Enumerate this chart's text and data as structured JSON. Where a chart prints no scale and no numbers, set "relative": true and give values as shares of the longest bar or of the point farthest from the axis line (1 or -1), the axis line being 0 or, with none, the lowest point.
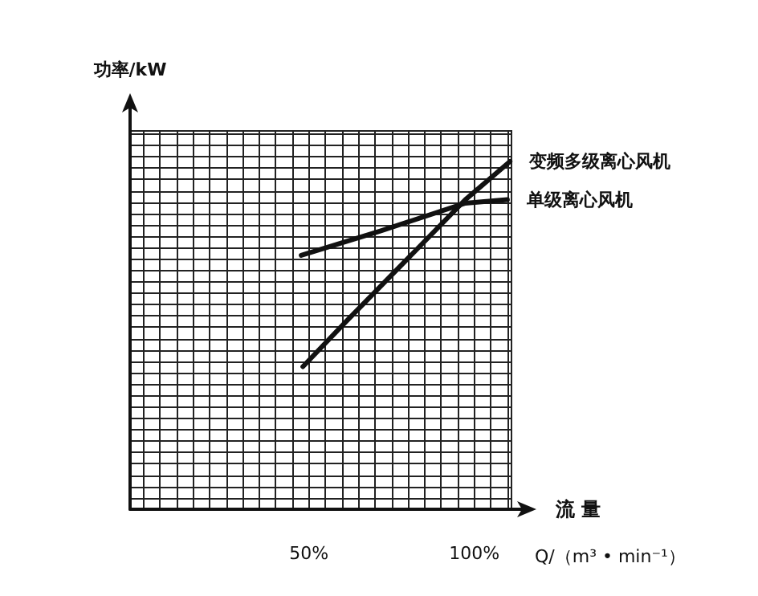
{
  "chart_data": {
    "type": "line",
    "relative": true,
    "ylabel": "功率/kW",
    "xlabel": "流 量",
    "annotations": [
      "Q/（m³ • min⁻¹）"
    ],
    "xlim": [
      -4,
      111
    ],
    "xticks": [
      {
        "value": 50,
        "label": "50%"
      },
      {
        "value": 100,
        "label": "100%"
      }
    ],
    "grid": true,
    "legend": false,
    "marker": "none",
    "line_style": "solid",
    "series": [
      {
        "name": "变频多级离心风机",
        "color": "#111111",
        "x": [
          48.2,
          61.3,
          97.3,
          110.8
        ],
        "values": [
          0.41,
          0.54,
          0.89,
          1
        ]
      },
      {
        "name": "单级离心风机",
        "color": "#111111",
        "x": [
          47.7,
          71.6,
          97.3,
          110
        ],
        "values": [
          0.73,
          0.8,
          0.88,
          0.89
        ]
      }
    ]
  }
}
